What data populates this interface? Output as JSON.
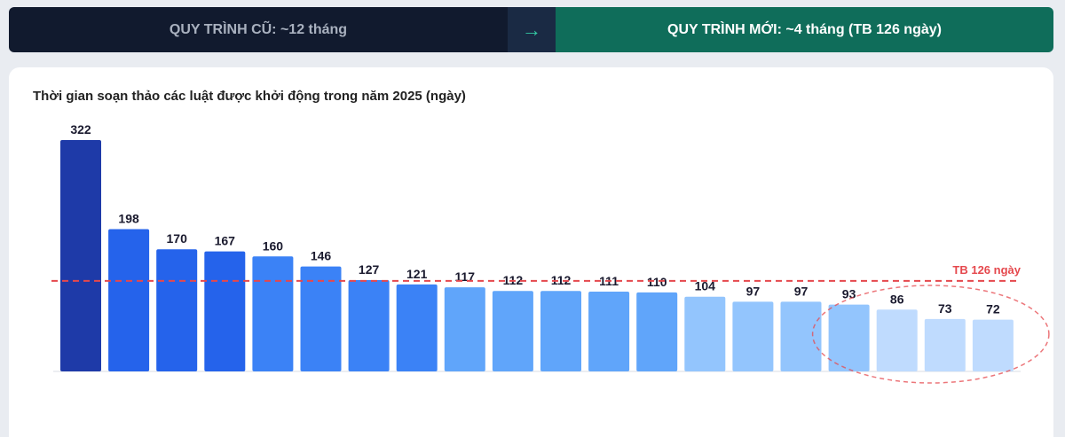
{
  "banner": {
    "old_label": "QUY TRÌNH CŨ: ~12 tháng",
    "arrow": "→",
    "new_label": "QUY TRÌNH MỚI: ~4 tháng (TB 126 ngày)"
  },
  "colors": {
    "banner_old_bg": "#111a2e",
    "banner_new_bg": "#0f6d5a",
    "avg_line": "#e5484d",
    "bar_dark": "#1e3aa8",
    "bar_blue": "#2563eb",
    "bar_mid": "#3b82f6",
    "bar_light": "#60a5fa",
    "bar_lighter": "#93c5fd",
    "bar_lightest": "#bfdbfe"
  },
  "chart_data": {
    "type": "bar",
    "title": "Thời gian soạn thảo các luật được khởi động trong năm 2025 (ngày)",
    "xlabel": "",
    "ylabel": "",
    "values": [
      322,
      198,
      170,
      167,
      160,
      146,
      127,
      121,
      117,
      112,
      112,
      111,
      110,
      104,
      97,
      97,
      93,
      86,
      73,
      72
    ],
    "bar_colors": [
      "#1e3aa8",
      "#2563eb",
      "#2563eb",
      "#2563eb",
      "#3b82f6",
      "#3b82f6",
      "#3b82f6",
      "#3b82f6",
      "#60a5fa",
      "#60a5fa",
      "#60a5fa",
      "#60a5fa",
      "#60a5fa",
      "#93c5fd",
      "#93c5fd",
      "#93c5fd",
      "#93c5fd",
      "#bfdbfe",
      "#bfdbfe",
      "#bfdbfe"
    ],
    "ylim": [
      0,
      322
    ],
    "grid": false,
    "reference_line": {
      "value": 126,
      "label": "TB 126 ngày"
    },
    "highlight_bars": [
      16,
      17,
      18,
      19
    ]
  }
}
